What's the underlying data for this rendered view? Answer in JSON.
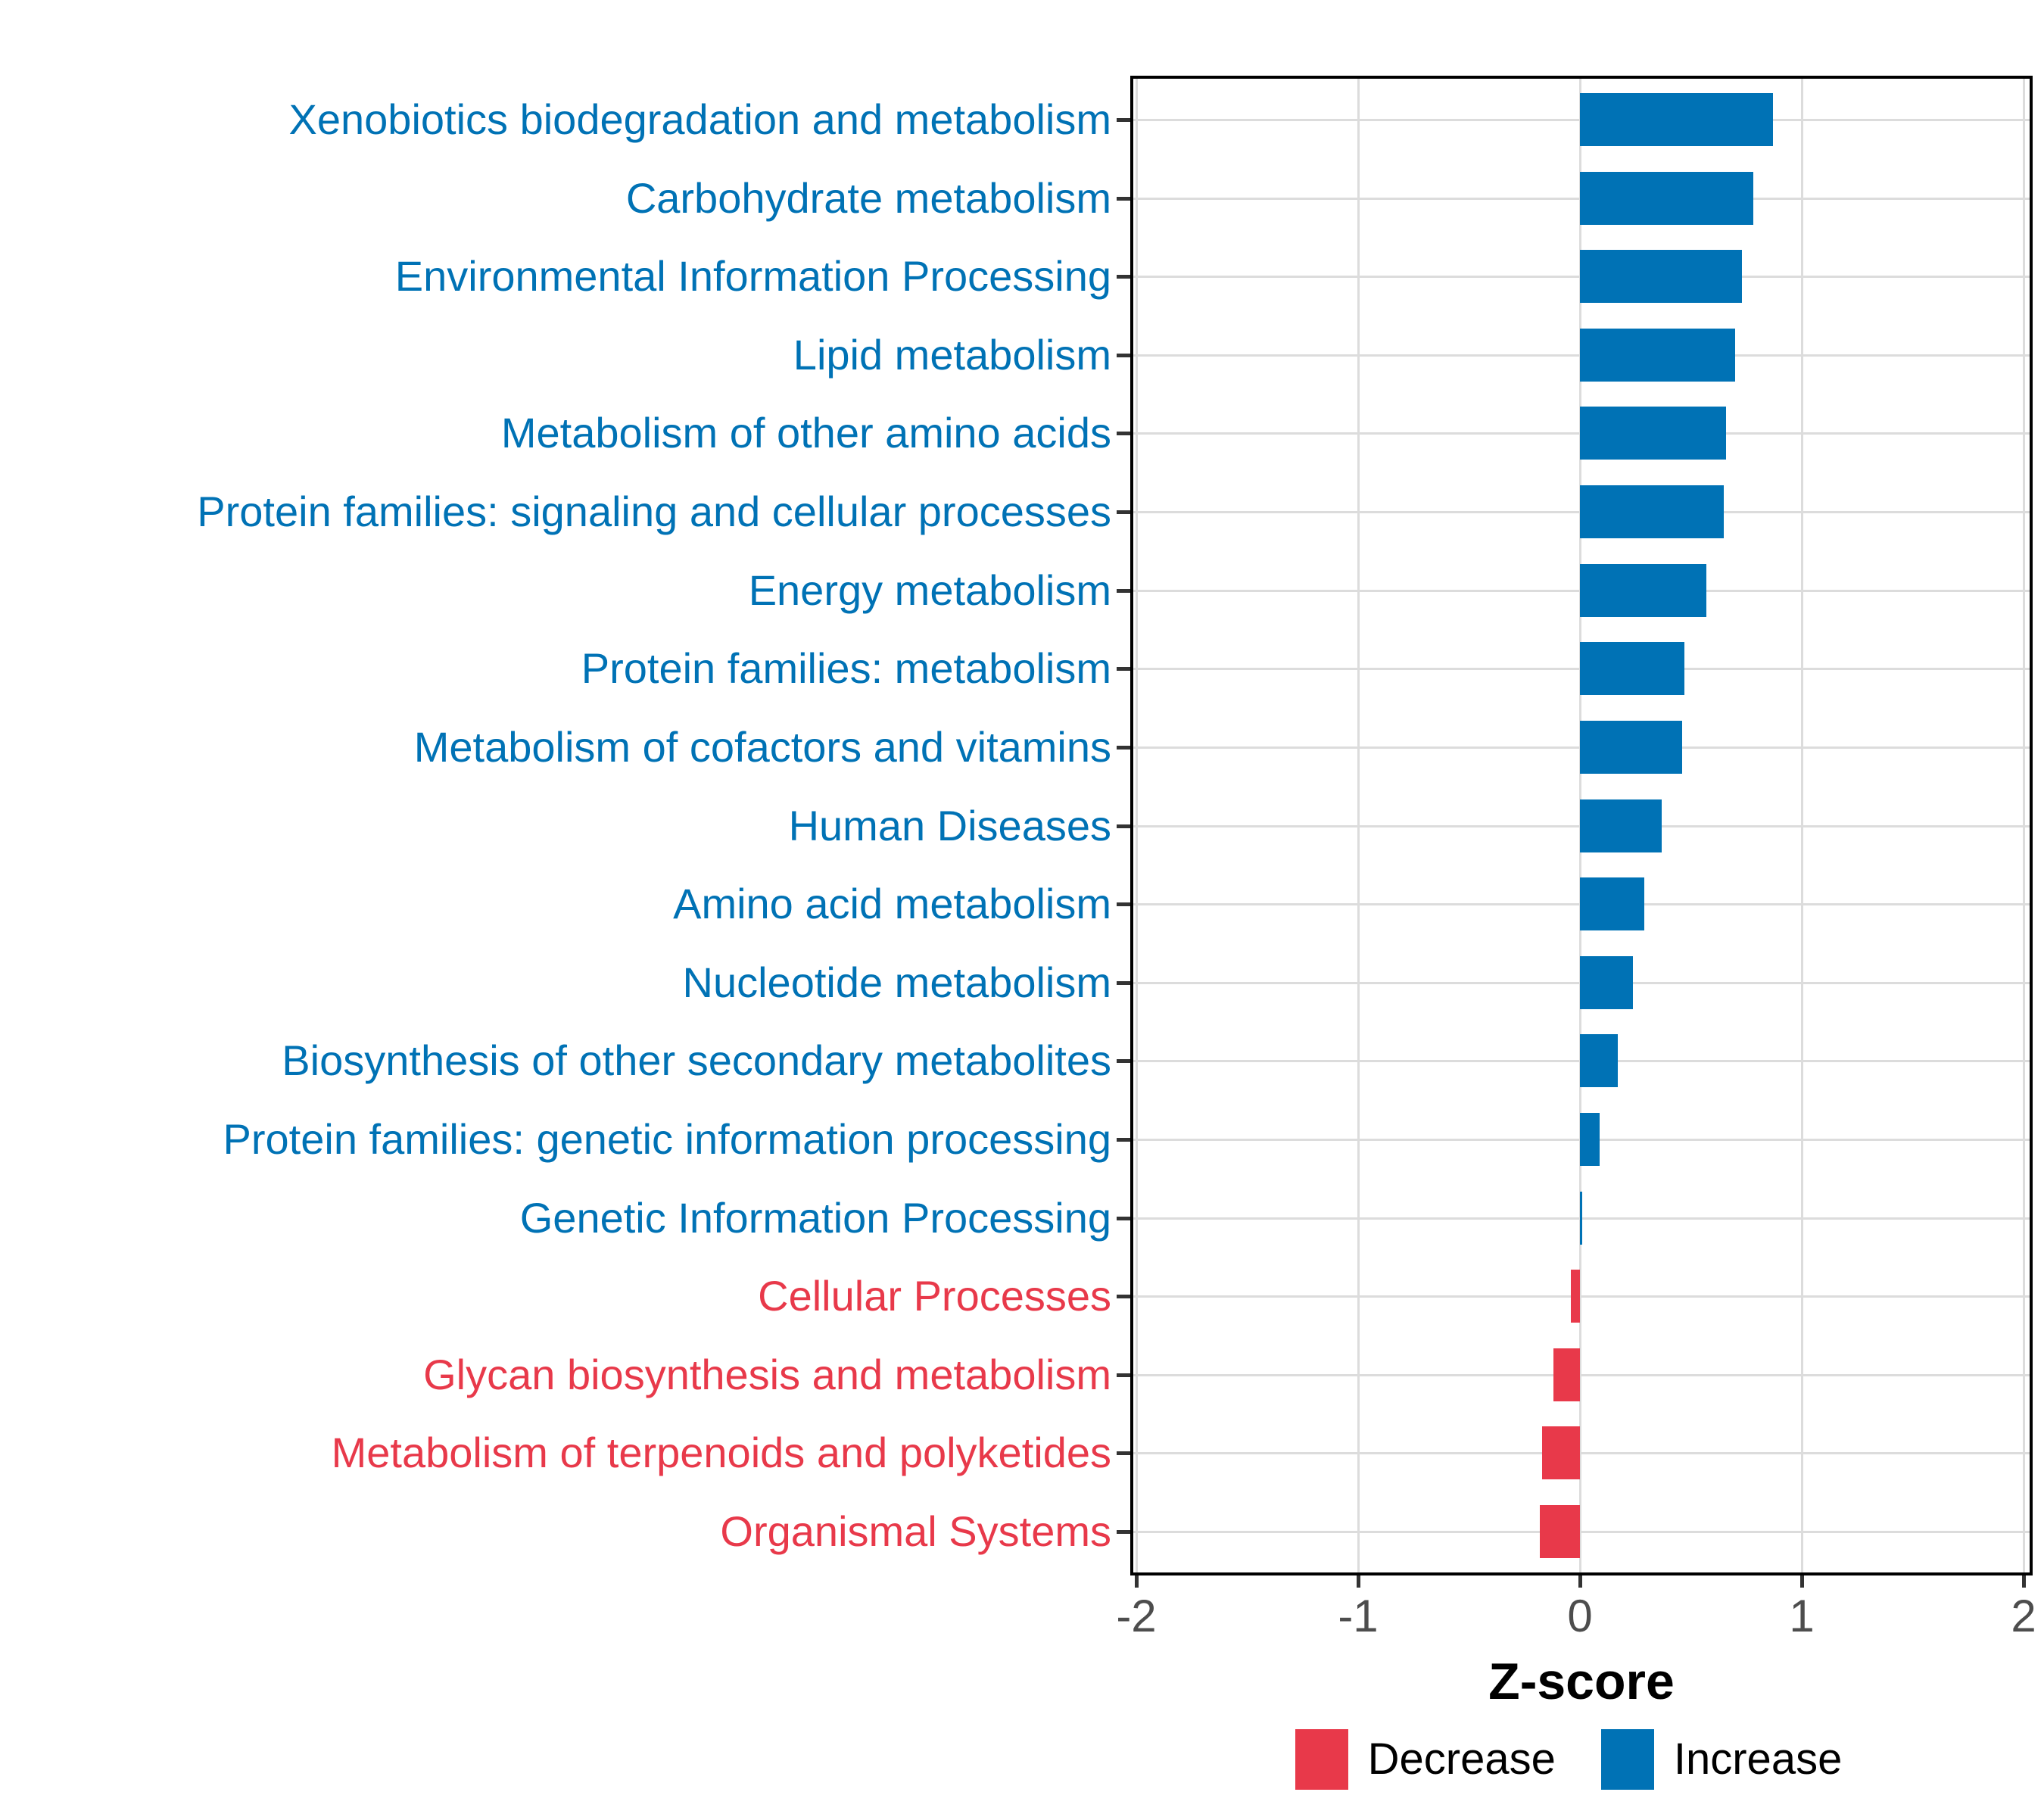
{
  "chart_data": {
    "type": "bar",
    "orientation": "horizontal",
    "title": "",
    "xlabel": "Z-score",
    "ylabel": "",
    "xlim": [
      -2.03,
      2.04
    ],
    "x_ticks": [
      -2,
      -1,
      0,
      1,
      2
    ],
    "x_tick_labels": [
      "-2",
      "-1",
      "0",
      "1",
      "2"
    ],
    "grid": "major-only",
    "legend_position": "bottom",
    "categories": [
      "Xenobiotics biodegradation and metabolism",
      "Carbohydrate metabolism",
      "Environmental Information Processing",
      "Lipid metabolism",
      "Metabolism of other amino acids",
      "Protein families: signaling and cellular processes",
      "Energy metabolism",
      "Protein families: metabolism",
      "Metabolism of cofactors and vitamins",
      "Human Diseases",
      "Amino acid metabolism",
      "Nucleotide metabolism",
      "Biosynthesis of other secondary metabolites",
      "Protein families: genetic information processing",
      "Genetic Information Processing",
      "Cellular Processes",
      "Glycan biosynthesis and metabolism",
      "Metabolism of terpenoids and polyketides",
      "Organismal Systems"
    ],
    "values": [
      0.87,
      0.78,
      0.73,
      0.7,
      0.66,
      0.65,
      0.57,
      0.47,
      0.46,
      0.37,
      0.29,
      0.24,
      0.17,
      0.09,
      0.01,
      -0.04,
      -0.12,
      -0.17,
      -0.18
    ],
    "directions": [
      "Increase",
      "Increase",
      "Increase",
      "Increase",
      "Increase",
      "Increase",
      "Increase",
      "Increase",
      "Increase",
      "Increase",
      "Increase",
      "Increase",
      "Increase",
      "Increase",
      "Increase",
      "Decrease",
      "Decrease",
      "Decrease",
      "Decrease"
    ]
  },
  "legend": {
    "items": [
      {
        "label": "Decrease",
        "color": "#E8394A"
      },
      {
        "label": "Increase",
        "color": "#0072B5"
      }
    ]
  },
  "colors": {
    "increase": "#0072B5",
    "decrease": "#E8394A",
    "gridline": "#DCDCDC",
    "axis_text": "#4D4D4D",
    "panel_border": "#000000",
    "background": "#FFFFFF"
  }
}
